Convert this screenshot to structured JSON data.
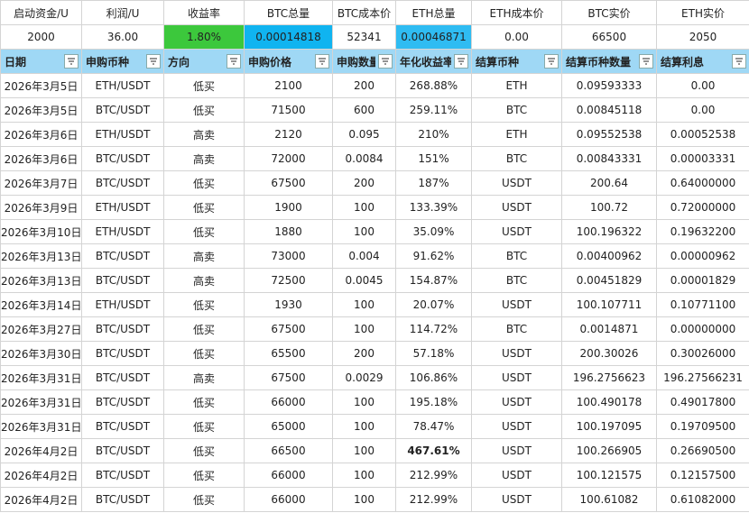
{
  "summary": {
    "headers": [
      "启动资金/U",
      "利润/U",
      "收益率",
      "BTC总量",
      "BTC成本价",
      "ETH总量",
      "ETH成本价",
      "BTC实价",
      "ETH实价"
    ],
    "values": [
      "2000",
      "36.00",
      "1.80%",
      "0.00014818",
      "52341",
      "0.00046871",
      "0.00",
      "66500",
      "2050"
    ]
  },
  "table": {
    "headers": [
      "日期",
      "申购币种",
      "方向",
      "申购价格",
      "申购数量",
      "年化收益率",
      "结算币种",
      "结算币种数量",
      "结算利息"
    ],
    "rows": [
      [
        "2026年3月5日",
        "ETH/USDT",
        "低买",
        "2100",
        "200",
        "268.88%",
        "ETH",
        "0.09593333",
        "0.00"
      ],
      [
        "2026年3月5日",
        "BTC/USDT",
        "低买",
        "71500",
        "600",
        "259.11%",
        "BTC",
        "0.00845118",
        "0.00"
      ],
      [
        "2026年3月6日",
        "ETH/USDT",
        "高卖",
        "2120",
        "0.095",
        "210%",
        "ETH",
        "0.09552538",
        "0.00052538"
      ],
      [
        "2026年3月6日",
        "BTC/USDT",
        "高卖",
        "72000",
        "0.0084",
        "151%",
        "BTC",
        "0.00843331",
        "0.00003331"
      ],
      [
        "2026年3月7日",
        "BTC/USDT",
        "低买",
        "67500",
        "200",
        "187%",
        "USDT",
        "200.64",
        "0.64000000"
      ],
      [
        "2026年3月9日",
        "ETH/USDT",
        "低买",
        "1900",
        "100",
        "133.39%",
        "USDT",
        "100.72",
        "0.72000000"
      ],
      [
        "2026年3月10日",
        "ETH/USDT",
        "低买",
        "1880",
        "100",
        "35.09%",
        "USDT",
        "100.196322",
        "0.19632200"
      ],
      [
        "2026年3月13日",
        "BTC/USDT",
        "高卖",
        "73000",
        "0.004",
        "91.62%",
        "BTC",
        "0.00400962",
        "0.00000962"
      ],
      [
        "2026年3月13日",
        "BTC/USDT",
        "高卖",
        "72500",
        "0.0045",
        "154.87%",
        "BTC",
        "0.00451829",
        "0.00001829"
      ],
      [
        "2026年3月14日",
        "ETH/USDT",
        "低买",
        "1930",
        "100",
        "20.07%",
        "USDT",
        "100.107711",
        "0.10771100"
      ],
      [
        "2026年3月27日",
        "BTC/USDT",
        "低买",
        "67500",
        "100",
        "114.72%",
        "BTC",
        "0.0014871",
        "0.00000000"
      ],
      [
        "2026年3月30日",
        "BTC/USDT",
        "低买",
        "65500",
        "200",
        "57.18%",
        "USDT",
        "200.30026",
        "0.30026000"
      ],
      [
        "2026年3月31日",
        "BTC/USDT",
        "高卖",
        "67500",
        "0.0029",
        "106.86%",
        "USDT",
        "196.2756623",
        "196.27566231"
      ],
      [
        "2026年3月31日",
        "BTC/USDT",
        "低买",
        "66000",
        "100",
        "195.18%",
        "USDT",
        "100.490178",
        "0.49017800"
      ],
      [
        "2026年3月31日",
        "BTC/USDT",
        "低买",
        "65000",
        "100",
        "78.47%",
        "USDT",
        "100.197095",
        "0.19709500"
      ],
      [
        "2026年4月2日",
        "BTC/USDT",
        "低买",
        "66500",
        "100",
        "467.61%",
        "USDT",
        "100.266905",
        "0.26690500"
      ],
      [
        "2026年4月2日",
        "BTC/USDT",
        "低买",
        "66000",
        "100",
        "212.99%",
        "USDT",
        "100.121575",
        "0.12157500"
      ],
      [
        "2026年4月2日",
        "BTC/USDT",
        "低买",
        "66000",
        "100",
        "212.99%",
        "USDT",
        "100.61082",
        "0.61082000"
      ]
    ]
  }
}
